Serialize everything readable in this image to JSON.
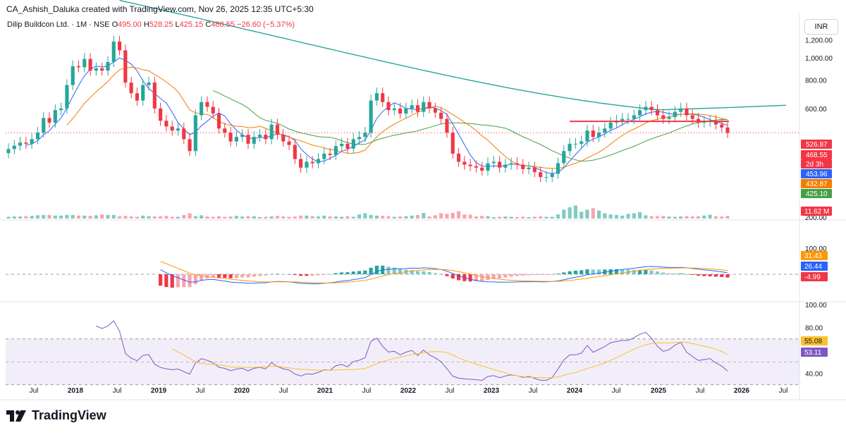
{
  "header": {
    "credit": "CA_Ashish_Daluka created with TradingView.com, Nov 26, 2025 12:35 UTC+5:30",
    "symbol": "Dilip Buildcon Ltd. · 1M · NSE",
    "o_label": "O",
    "o_value": "495.00",
    "h_label": "H",
    "h_value": "528.25",
    "l_label": "L",
    "l_value": "425.15",
    "c_label": "C",
    "c_value": "468.55",
    "change": "−26.60 (−5.37%)",
    "currency": "INR"
  },
  "brand": {
    "name": "TradingView"
  },
  "colors": {
    "up": "#26a69a",
    "down": "#f23645",
    "vol_up": "#80cbc4",
    "vol_down": "#f8a5ac",
    "curve": "#26a69a",
    "ma_blue": "#2962ff",
    "ma_orange": "#f57c00",
    "ma_green": "#43a047",
    "macd_line": "#2962ff",
    "signal_line": "#ff9800",
    "rsi_line": "#7e57c2",
    "rsi_ma": "#fbc02d",
    "resistance": "#f23645"
  },
  "chart_data": [
    {
      "type": "candlestick",
      "title": "Dilip Buildcon Ltd. · 1M · NSE",
      "y_ticks": [
        "1,200.00",
        "1,000.00",
        "800.00",
        "600.00",
        "200.00"
      ],
      "x_ticks": [
        "Jul",
        "2018",
        "Jul",
        "2019",
        "Jul",
        "2020",
        "Jul",
        "2021",
        "Jul",
        "2022",
        "Jul",
        "2023",
        "Jul",
        "2024",
        "Jul",
        "2025",
        "Jul",
        "2026",
        "Jul"
      ],
      "ylim": [
        200,
        1240
      ],
      "log_scale": true,
      "closes": [
        398,
        412,
        425,
        420,
        440,
        470,
        545,
        520,
        590,
        600,
        760,
        920,
        910,
        990,
        880,
        900,
        880,
        960,
        1180,
        1080,
        780,
        700,
        650,
        760,
        780,
        600,
        530,
        500,
        480,
        490,
        440,
        390,
        560,
        640,
        610,
        570,
        490,
        470,
        430,
        450,
        460,
        420,
        450,
        460,
        440,
        510,
        460,
        430,
        415,
        360,
        330,
        350,
        345,
        360,
        380,
        375,
        410,
        420,
        400,
        440,
        450,
        470,
        650,
        700,
        640,
        590,
        600,
        570,
        600,
        620,
        580,
        640,
        600,
        575,
        540,
        470,
        380,
        350,
        340,
        335,
        330,
        320,
        345,
        350,
        330,
        340,
        345,
        340,
        325,
        330,
        315,
        300,
        300,
        310,
        345,
        390,
        420,
        420,
        430,
        480,
        450,
        470,
        490,
        520,
        530,
        540,
        540,
        560,
        590,
        610,
        590,
        560,
        540,
        550,
        580,
        600,
        560,
        540,
        520,
        525,
        530,
        510,
        495,
        468.55
      ],
      "volumes": [
        0.06,
        0.07,
        0.07,
        0.08,
        0.09,
        0.11,
        0.12,
        0.12,
        0.1,
        0.1,
        0.12,
        0.12,
        0.1,
        0.1,
        0.09,
        0.11,
        0.14,
        0.12,
        0.12,
        0.08,
        0.09,
        0.07,
        0.06,
        0.1,
        0.08,
        0.07,
        0.08,
        0.09,
        0.06,
        0.06,
        0.12,
        0.18,
        0.08,
        0.11,
        0.07,
        0.06,
        0.08,
        0.06,
        0.07,
        0.09,
        0.07,
        0.08,
        0.08,
        0.05,
        0.06,
        0.07,
        0.09,
        0.07,
        0.06,
        0.07,
        0.1,
        0.1,
        0.08,
        0.07,
        0.1,
        0.07,
        0.07,
        0.06,
        0.08,
        0.06,
        0.14,
        0.18,
        0.12,
        0.1,
        0.09,
        0.08,
        0.06,
        0.07,
        0.08,
        0.1,
        0.12,
        0.19,
        0.07,
        0.11,
        0.18,
        0.16,
        0.19,
        0.25,
        0.14,
        0.13,
        0.07,
        0.09,
        0.08,
        0.05,
        0.06,
        0.07,
        0.06,
        0.05,
        0.06,
        0.05,
        0.06,
        0.07,
        0.06,
        0.06,
        0.14,
        0.3,
        0.38,
        0.44,
        0.23,
        0.3,
        0.35,
        0.27,
        0.18,
        0.14,
        0.12,
        0.1,
        0.16,
        0.18,
        0.22,
        0.11,
        0.08,
        0.08,
        0.09,
        0.07,
        0.06,
        0.07,
        0.08,
        0.07,
        0.08,
        0.1,
        0.13,
        0.08,
        0.07,
        0.09
      ],
      "series_last_values": {
        "resistance": "526.87",
        "close": "468.55",
        "countdown": "2d 3h",
        "ma_blue": "453.96",
        "ma_orange": "432.87",
        "ma_green": "425.10",
        "volume": "11.62 M"
      }
    },
    {
      "type": "line",
      "series_last_values": {
        "signal": "31.43",
        "macd": "26.44",
        "histogram": "-4.99"
      },
      "y_ticks": [
        "100.00"
      ]
    },
    {
      "type": "line",
      "y_ticks": [
        "100.00",
        "80.00",
        "60.00",
        "40.00"
      ],
      "ylim": [
        20,
        100
      ],
      "series_last_values": {
        "rsi_ma": "55.08",
        "rsi": "53.11"
      },
      "bands": [
        70,
        30
      ]
    }
  ]
}
